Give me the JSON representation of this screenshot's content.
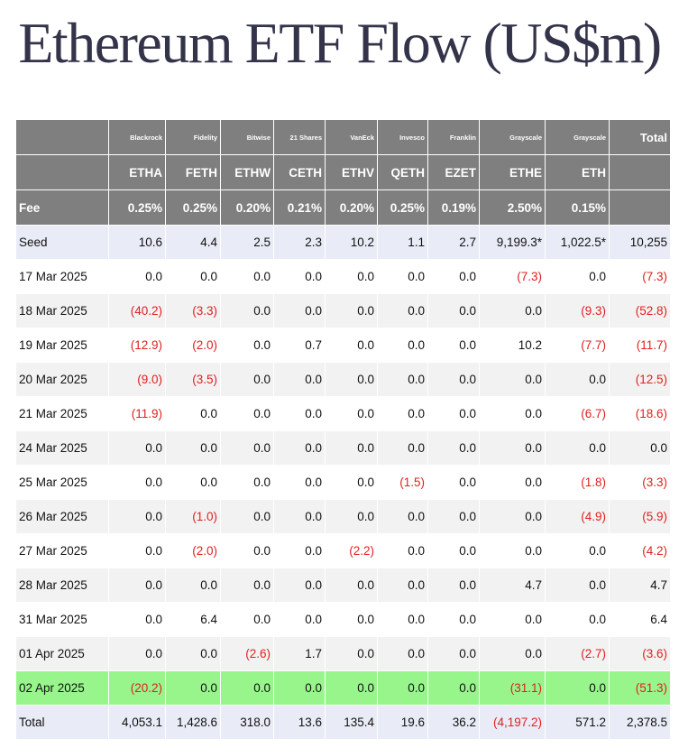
{
  "title": "Ethereum ETF Flow (US$m)",
  "columns": [
    {
      "issuer": "Blackrock",
      "ticker": "ETHA",
      "fee": "0.25%"
    },
    {
      "issuer": "Fidelity",
      "ticker": "FETH",
      "fee": "0.25%"
    },
    {
      "issuer": "Bitwise",
      "ticker": "ETHW",
      "fee": "0.20%"
    },
    {
      "issuer": "21 Shares",
      "ticker": "CETH",
      "fee": "0.21%"
    },
    {
      "issuer": "VanEck",
      "ticker": "ETHV",
      "fee": "0.20%"
    },
    {
      "issuer": "Invesco",
      "ticker": "QETH",
      "fee": "0.25%"
    },
    {
      "issuer": "Franklin",
      "ticker": "EZET",
      "fee": "0.19%"
    },
    {
      "issuer": "Grayscale",
      "ticker": "ETHE",
      "fee": "2.50%"
    },
    {
      "issuer": "Grayscale",
      "ticker": "ETH",
      "fee": "0.15%"
    }
  ],
  "total_header": "Total",
  "fee_label": "Fee",
  "rows": [
    {
      "date": "Seed",
      "values": [
        "10.6",
        "4.4",
        "2.5",
        "2.3",
        "10.2",
        "1.1",
        "2.7",
        "9,199.3*",
        "1,022.5*"
      ],
      "total": "10,255",
      "style": "seed"
    },
    {
      "date": "17 Mar 2025",
      "values": [
        "0.0",
        "0.0",
        "0.0",
        "0.0",
        "0.0",
        "0.0",
        "0.0",
        "(7.3)",
        "0.0"
      ],
      "total": "(7.3)",
      "style": "odd"
    },
    {
      "date": "18 Mar 2025",
      "values": [
        "(40.2)",
        "(3.3)",
        "0.0",
        "0.0",
        "0.0",
        "0.0",
        "0.0",
        "0.0",
        "(9.3)"
      ],
      "total": "(52.8)",
      "style": "even"
    },
    {
      "date": "19 Mar 2025",
      "values": [
        "(12.9)",
        "(2.0)",
        "0.0",
        "0.7",
        "0.0",
        "0.0",
        "0.0",
        "10.2",
        "(7.7)"
      ],
      "total": "(11.7)",
      "style": "odd"
    },
    {
      "date": "20 Mar 2025",
      "values": [
        "(9.0)",
        "(3.5)",
        "0.0",
        "0.0",
        "0.0",
        "0.0",
        "0.0",
        "0.0",
        "0.0"
      ],
      "total": "(12.5)",
      "style": "even"
    },
    {
      "date": "21 Mar 2025",
      "values": [
        "(11.9)",
        "0.0",
        "0.0",
        "0.0",
        "0.0",
        "0.0",
        "0.0",
        "0.0",
        "(6.7)"
      ],
      "total": "(18.6)",
      "style": "odd"
    },
    {
      "date": "24 Mar 2025",
      "values": [
        "0.0",
        "0.0",
        "0.0",
        "0.0",
        "0.0",
        "0.0",
        "0.0",
        "0.0",
        "0.0"
      ],
      "total": "0.0",
      "style": "even"
    },
    {
      "date": "25 Mar 2025",
      "values": [
        "0.0",
        "0.0",
        "0.0",
        "0.0",
        "0.0",
        "(1.5)",
        "0.0",
        "0.0",
        "(1.8)"
      ],
      "total": "(3.3)",
      "style": "odd"
    },
    {
      "date": "26 Mar 2025",
      "values": [
        "0.0",
        "(1.0)",
        "0.0",
        "0.0",
        "0.0",
        "0.0",
        "0.0",
        "0.0",
        "(4.9)"
      ],
      "total": "(5.9)",
      "style": "even"
    },
    {
      "date": "27 Mar 2025",
      "values": [
        "0.0",
        "(2.0)",
        "0.0",
        "0.0",
        "(2.2)",
        "0.0",
        "0.0",
        "0.0",
        "0.0"
      ],
      "total": "(4.2)",
      "style": "odd"
    },
    {
      "date": "28 Mar 2025",
      "values": [
        "0.0",
        "0.0",
        "0.0",
        "0.0",
        "0.0",
        "0.0",
        "0.0",
        "4.7",
        "0.0"
      ],
      "total": "4.7",
      "style": "even"
    },
    {
      "date": "31 Mar 2025",
      "values": [
        "0.0",
        "6.4",
        "0.0",
        "0.0",
        "0.0",
        "0.0",
        "0.0",
        "0.0",
        "0.0"
      ],
      "total": "6.4",
      "style": "odd"
    },
    {
      "date": "01 Apr 2025",
      "values": [
        "0.0",
        "0.0",
        "(2.6)",
        "1.7",
        "0.0",
        "0.0",
        "0.0",
        "0.0",
        "(2.7)"
      ],
      "total": "(3.6)",
      "style": "even"
    },
    {
      "date": "02 Apr 2025",
      "values": [
        "(20.2)",
        "0.0",
        "0.0",
        "0.0",
        "0.0",
        "0.0",
        "0.0",
        "(31.1)",
        "0.0"
      ],
      "total": "(51.3)",
      "style": "highlight"
    },
    {
      "date": "Total",
      "values": [
        "4,053.1",
        "1,428.6",
        "318.0",
        "13.6",
        "135.4",
        "19.6",
        "36.2",
        "(4,197.2)",
        "571.2"
      ],
      "total": "2,378.5",
      "style": "total"
    }
  ],
  "colors": {
    "header_bg": "#7f7f7f",
    "negative": "#e02020",
    "highlight": "#98f58c",
    "seed_total_bg": "#e9ecf6"
  }
}
